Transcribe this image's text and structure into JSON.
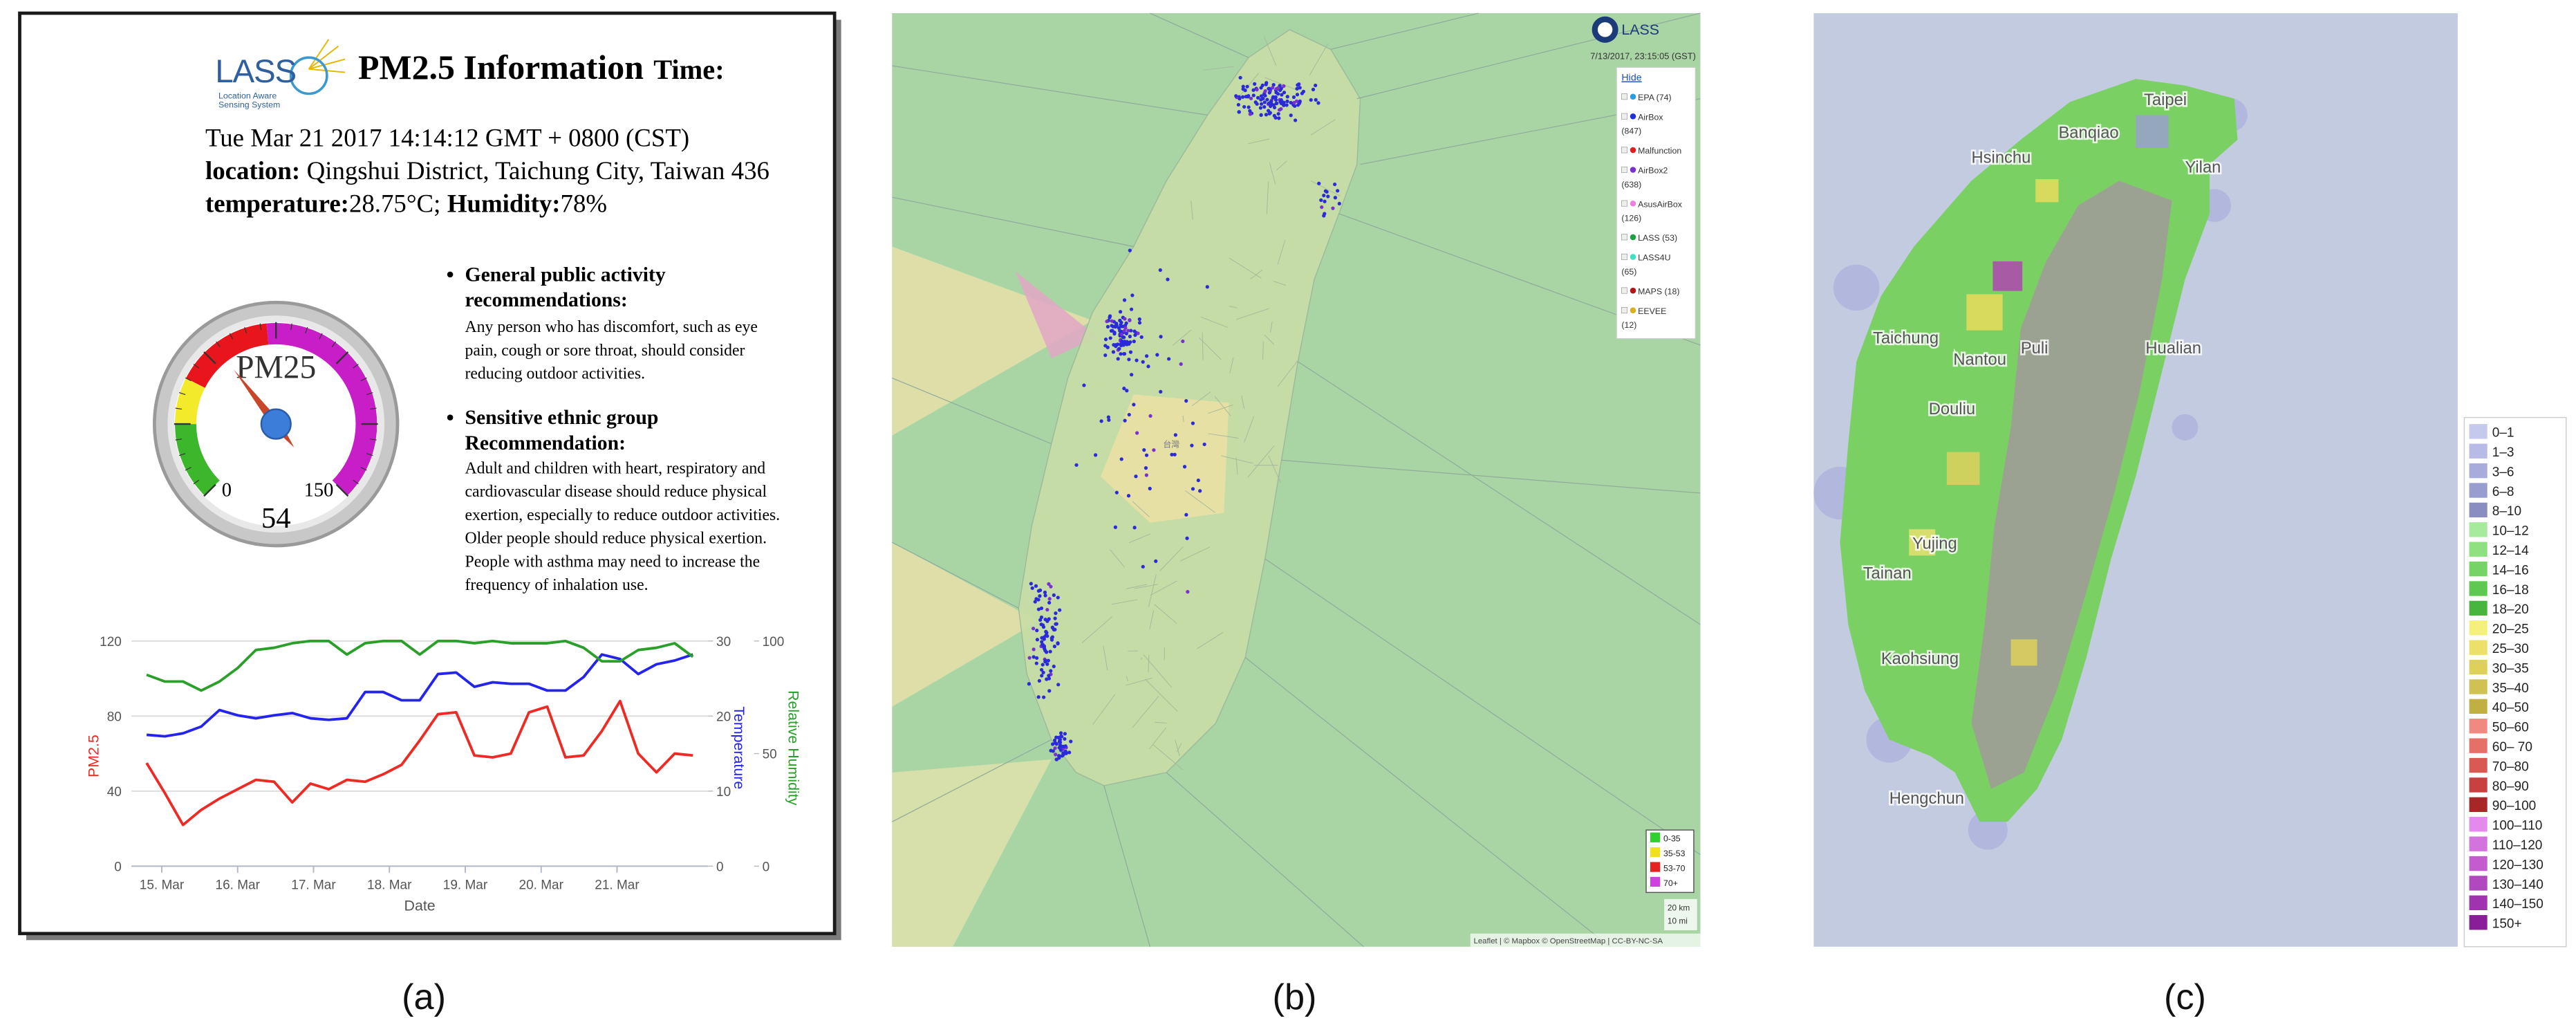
{
  "panel_a": {
    "logo": {
      "name": "LASS",
      "tagline": [
        "Location Aware",
        "Sensing System"
      ]
    },
    "title": "PM2.5 Information",
    "time_label": "Time:",
    "timestamp": "Tue Mar 21 2017 14:14:12 GMT + 0800 (CST)",
    "location_label": "location:",
    "location": "Qingshui District, Taichung City, Taiwan 436",
    "temperature_label": "temperature:",
    "temperature": "28.75°C;",
    "humidity_label": "Humidity:",
    "humidity": "78%",
    "gauge": {
      "label": "PM25",
      "value": 54,
      "min": 0,
      "max": 150,
      "bands": [
        {
          "from": 0,
          "to": 25,
          "color": "#3cb72c"
        },
        {
          "from": 25,
          "to": 40,
          "color": "#f2ea2a"
        },
        {
          "from": 40,
          "to": 72,
          "color": "#e8161c"
        },
        {
          "from": 72,
          "to": 150,
          "color": "#c81ec8"
        }
      ]
    },
    "recommendations": [
      {
        "heading": [
          "General public activity",
          "recommendations:"
        ],
        "body": [
          "Any person who has discomfort, such as eye",
          "pain, cough or sore throat, should consider",
          "reducing outdoor activities."
        ]
      },
      {
        "heading": [
          "Sensitive ethnic group",
          "Recommendation:"
        ],
        "body": [
          "Adult and children with heart, respiratory and",
          "cardiovascular disease should reduce physical",
          "exertion, especially to reduce outdoor activities.",
          "Older people should reduce physical exertion.",
          "People with asthma may need to increase the",
          "frequency of inhalation use."
        ]
      }
    ],
    "chart": {
      "type": "line",
      "x": [
        14.8,
        15.04,
        15.28,
        15.52,
        15.76,
        16,
        16.24,
        16.48,
        16.72,
        16.96,
        17.2,
        17.44,
        17.68,
        17.92,
        18.16,
        18.4,
        18.64,
        18.88,
        19.12,
        19.36,
        19.6,
        19.84,
        20.08,
        20.32,
        20.56,
        20.8,
        21.04,
        21.28,
        21.52,
        21.76,
        22
      ],
      "xlim": [
        14.6,
        22.2
      ],
      "xticks": [
        {
          "value": 15,
          "label": "15. Mar"
        },
        {
          "value": 16,
          "label": "16. Mar"
        },
        {
          "value": 17,
          "label": "17. Mar"
        },
        {
          "value": 18,
          "label": "18. Mar"
        },
        {
          "value": 19,
          "label": "19. Mar"
        },
        {
          "value": 20,
          "label": "20. Mar"
        },
        {
          "value": 21,
          "label": "21. Mar"
        }
      ],
      "xlabel": "Date",
      "ylim": [
        0,
        120
      ],
      "yticks": [
        0,
        40,
        80,
        120
      ],
      "ylabel": "PM2.5",
      "y2lim": [
        0,
        30
      ],
      "y2ticks": [
        0,
        10,
        20,
        30
      ],
      "y2label": "Temperature",
      "y3lim": [
        0,
        100
      ],
      "y3ticks": [
        0,
        50,
        100
      ],
      "y3label": "Relative Humidity",
      "grid": true,
      "series": [
        {
          "color": "#ee2a24",
          "axis": "y",
          "values": [
            55,
            39,
            22,
            30,
            36,
            41,
            46,
            45,
            34,
            44,
            41,
            46,
            45,
            49,
            54,
            67,
            81,
            82,
            59,
            58,
            60,
            82,
            85,
            58,
            59,
            72,
            88,
            60,
            50,
            60,
            59
          ]
        },
        {
          "color": "#2424ee",
          "axis": "y2",
          "values": [
            17.5,
            17.3,
            17.7,
            18.6,
            20.8,
            20.1,
            19.7,
            20.1,
            20.4,
            19.7,
            19.5,
            19.7,
            23.2,
            23.2,
            22.1,
            22.1,
            25.6,
            25.8,
            23.9,
            24.5,
            24.3,
            24.3,
            23.4,
            23.4,
            25.2,
            28.2,
            27.6,
            25.6,
            26.9,
            27.4,
            28.2
          ]
        },
        {
          "color": "#2aa02a",
          "axis": "y3",
          "values": [
            85,
            82,
            82,
            78,
            82,
            88,
            96,
            97,
            99,
            100,
            100,
            94,
            99,
            100,
            100,
            94,
            100,
            100,
            99,
            100,
            99,
            99,
            99,
            100,
            97,
            91,
            91,
            96,
            97,
            99,
            93
          ]
        }
      ]
    }
  },
  "panel_b": {
    "logo": "LASS",
    "timestamp": "7/13/2017, 23:15:05 (GST)",
    "hide": "Hide",
    "map_label": "台灣",
    "sources": [
      {
        "name": "EPA (74)",
        "color": "#2d9be0"
      },
      {
        "name": "AirBox",
        "count": "(847)",
        "color": "#2030d8"
      },
      {
        "name": "Malfunction",
        "color": "#e02020"
      },
      {
        "name": "AirBox2",
        "count": "(638)",
        "color": "#7a30d0"
      },
      {
        "name": "AsusAirBox",
        "count": "(126)",
        "color": "#f080e0"
      },
      {
        "name": "LASS (53)",
        "color": "#20a040"
      },
      {
        "name": "LASS4U",
        "count": "(65)",
        "color": "#40e0c0"
      },
      {
        "name": "MAPS (18)",
        "color": "#b01818"
      },
      {
        "name": "EEVEE",
        "count": "(12)",
        "color": "#d8b020"
      }
    ],
    "levels": [
      {
        "label": "0-35",
        "color": "#30d030"
      },
      {
        "label": "35-53",
        "color": "#f0e020"
      },
      {
        "label": "53-70",
        "color": "#e82020"
      },
      {
        "label": "70+",
        "color": "#d040e0"
      }
    ],
    "scale": [
      "20 km",
      "10 mi"
    ],
    "attribution": "Leaflet | © Mapbox © OpenStreetMap | CC-BY-NC-SA"
  },
  "panel_c": {
    "places": [
      "Taipei",
      "Banqiao",
      "Hsinchu",
      "Yilan",
      "Taichung",
      "Nantou",
      "Puli",
      "Hualian",
      "Douliu",
      "Yujing",
      "Tainan",
      "Kaohsiung",
      "Hengchun"
    ],
    "legend": [
      {
        "label": "0–1",
        "color": "#c6c9ee"
      },
      {
        "label": "1–3",
        "color": "#b7bbe6"
      },
      {
        "label": "3–6",
        "color": "#a8acdc"
      },
      {
        "label": "6–8",
        "color": "#989dd0"
      },
      {
        "label": "8–10",
        "color": "#888dc2"
      },
      {
        "label": "10–12",
        "color": "#a6ea9c"
      },
      {
        "label": "12–14",
        "color": "#8ee080"
      },
      {
        "label": "14–16",
        "color": "#74d466"
      },
      {
        "label": "16–18",
        "color": "#5ec850"
      },
      {
        "label": "18–20",
        "color": "#48b63e"
      },
      {
        "label": "20–25",
        "color": "#f5f07c"
      },
      {
        "label": "25–30",
        "color": "#ebe06a"
      },
      {
        "label": "30–35",
        "color": "#ddd15c"
      },
      {
        "label": "35–40",
        "color": "#cfc152"
      },
      {
        "label": "40–50",
        "color": "#c0b042"
      },
      {
        "label": "50–60",
        "color": "#f08a80"
      },
      {
        "label": "60– 70",
        "color": "#e67068"
      },
      {
        "label": "70–80",
        "color": "#d85a52"
      },
      {
        "label": "80–90",
        "color": "#c84040"
      },
      {
        "label": "90–100",
        "color": "#a82626"
      },
      {
        "label": "100–110",
        "color": "#e48aec"
      },
      {
        "label": "110–120",
        "color": "#d472de"
      },
      {
        "label": "120–130",
        "color": "#c25ccf"
      },
      {
        "label": "130–140",
        "color": "#b048be"
      },
      {
        "label": "140–150",
        "color": "#a034ae"
      },
      {
        "label": "150+",
        "color": "#8a1e98"
      }
    ]
  },
  "captions": [
    "(a)",
    "(b)",
    "(c)"
  ]
}
